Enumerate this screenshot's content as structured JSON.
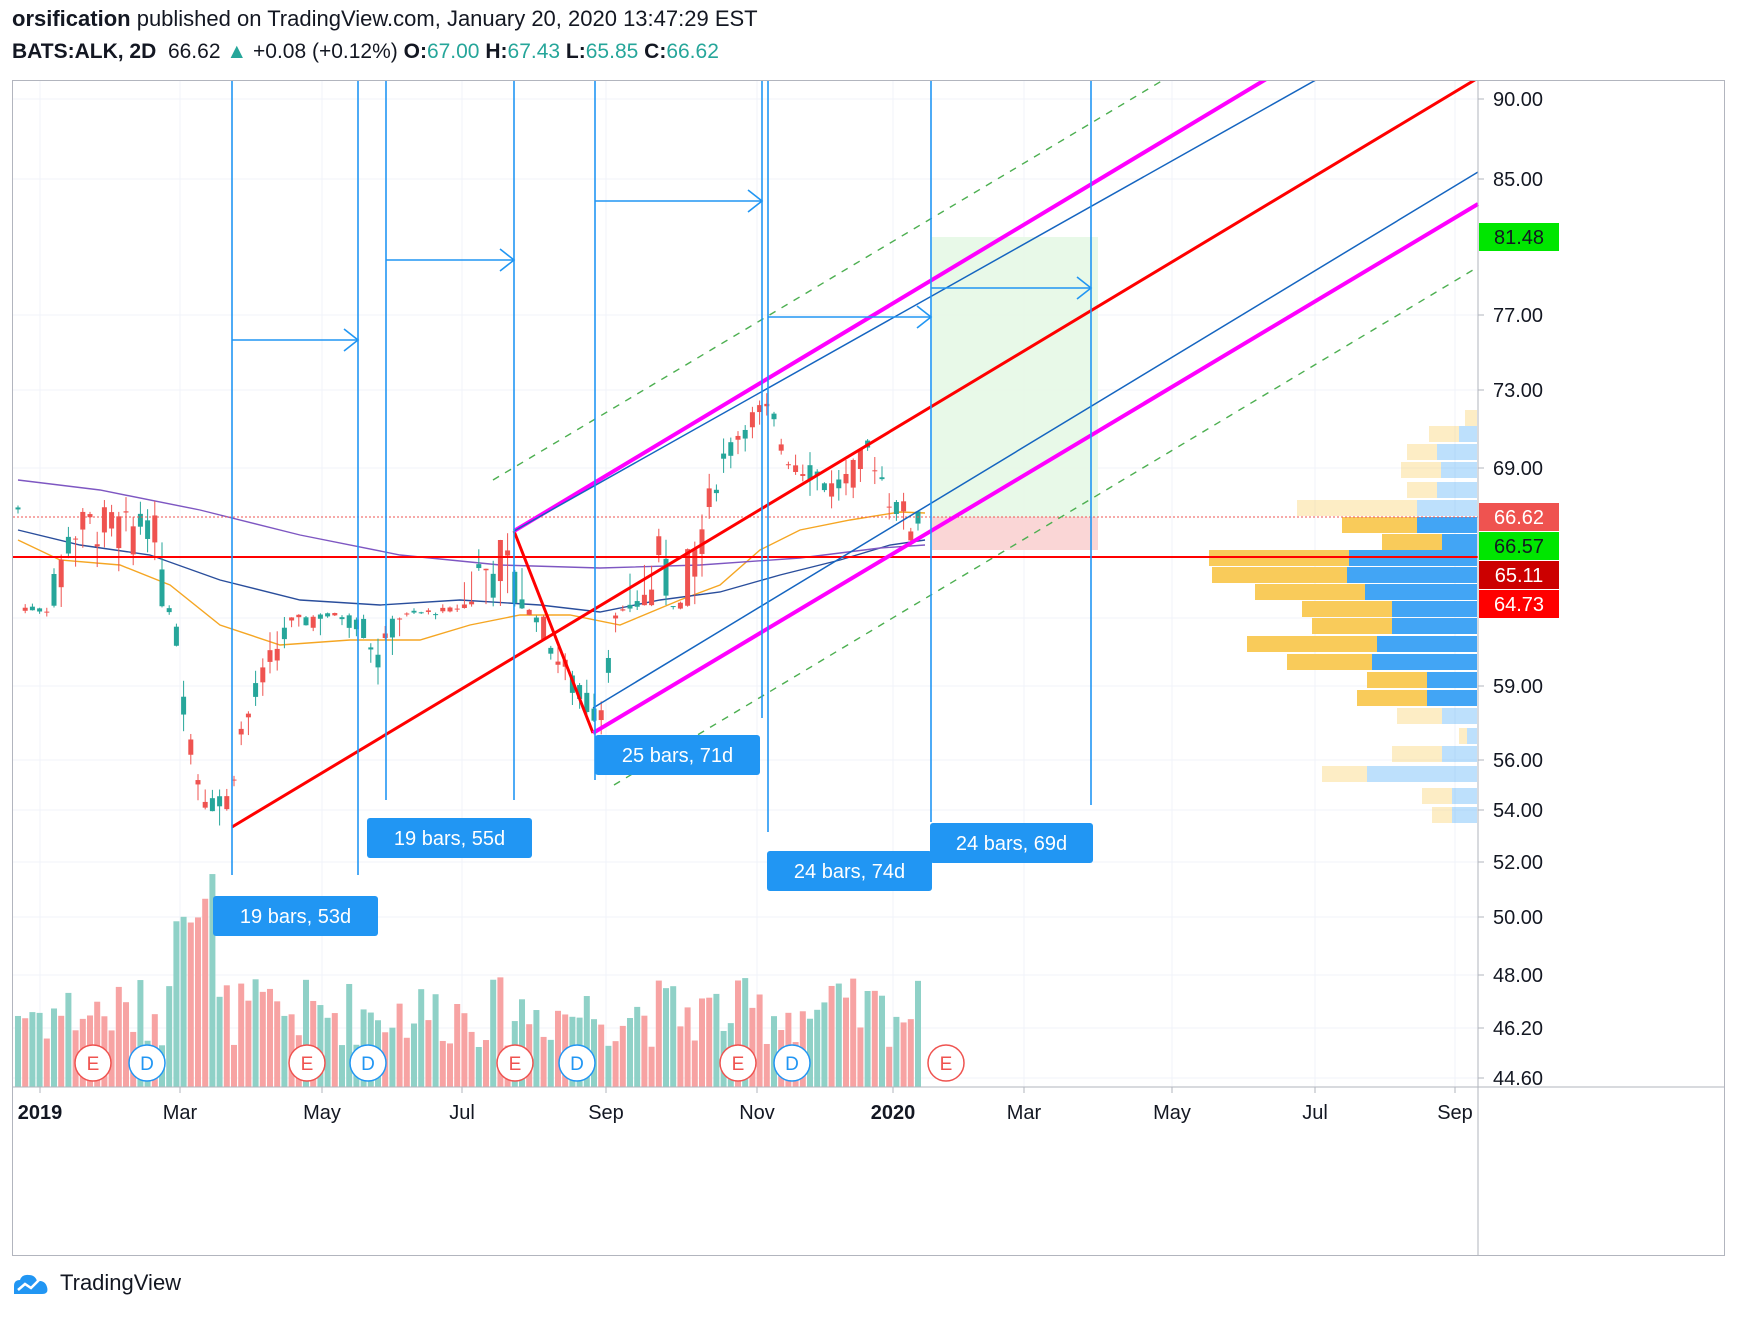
{
  "header": {
    "author": "orsification",
    "published_text": "published on TradingView.com, January 20, 2020 13:47:29 EST",
    "symbol": "BATS:ALK, 2D",
    "last": "66.62",
    "change_arrow": "▲",
    "change": "+0.08 (+0.12%)",
    "open_label": "O:",
    "open": "67.00",
    "high_label": "H:",
    "high": "67.43",
    "low_label": "L:",
    "low": "65.85",
    "close_label": "C:",
    "close": "66.62"
  },
  "colors": {
    "up": "#26a69a",
    "down": "#ef5350",
    "red_line": "#ff0000",
    "magenta": "#ff00ff",
    "blue_line": "#1565c0",
    "tool_blue": "#2196f3",
    "green_dash": "#4caf50",
    "ma_orange": "#f5a623",
    "ma_blue": "#2a4e9c",
    "ma_purple": "#7e57c2",
    "vol_up": "#8fd1c7",
    "vol_down": "#f7a3a3",
    "vp_yellow": "#f9cb5a",
    "vp_blue": "#42a5f5"
  },
  "x_axis_labels": [
    "2019",
    "Mar",
    "May",
    "Jul",
    "Sep",
    "Nov",
    "2020",
    "Mar",
    "May",
    "Jul",
    "Sep"
  ],
  "y_axis_labels": [
    "90.00",
    "85.00",
    "77.00",
    "73.00",
    "69.00",
    "59.00",
    "56.00",
    "54.00",
    "52.00",
    "50.00",
    "48.00",
    "46.20",
    "44.60"
  ],
  "price_badges": [
    {
      "text": "81.48",
      "bg": "#00e600",
      "fg": "#131722"
    },
    {
      "text": "66.62",
      "bg": "#ef5350",
      "fg": "#ffffff"
    },
    {
      "text": "66.57",
      "bg": "#00e600",
      "fg": "#131722"
    },
    {
      "text": "65.11",
      "bg": "#cc0000",
      "fg": "#ffffff"
    },
    {
      "text": "64.73",
      "bg": "#ff0000",
      "fg": "#ffffff"
    }
  ],
  "range_labels": [
    "19 bars, 53d",
    "19 bars, 55d",
    "25 bars, 71d",
    "24 bars, 74d",
    "24 bars, 69d"
  ],
  "event_markers": [
    "E",
    "D",
    "E",
    "D",
    "E",
    "D",
    "E",
    "D",
    "E"
  ],
  "footer": {
    "brand": "TradingView"
  }
}
